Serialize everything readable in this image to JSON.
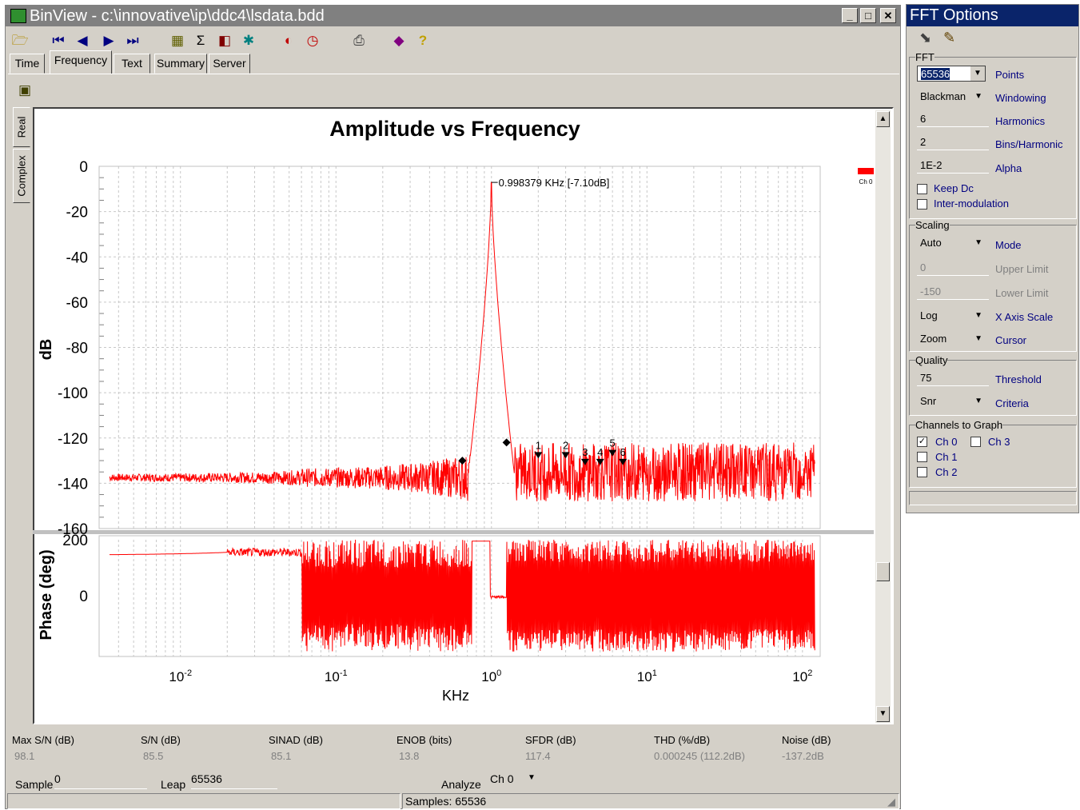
{
  "window": {
    "title": "BinView - c:\\innovative\\ip\\ddc4\\lsdata.bdd",
    "min": "_",
    "max": "□",
    "close": "✕"
  },
  "tabs": [
    {
      "label": "Time"
    },
    {
      "label": "Frequency"
    },
    {
      "label": "Text"
    },
    {
      "label": "Summary"
    },
    {
      "label": "Server"
    }
  ],
  "side_tabs": [
    {
      "label": "Real"
    },
    {
      "label": "Complex"
    }
  ],
  "icons": [
    "open-folder-icon",
    "first-icon",
    "prev-icon",
    "play-icon",
    "last-icon",
    "plot-icon",
    "sigma-icon",
    "analyze-icon",
    "run-icon",
    "stop-icon",
    "clock-icon",
    "print-icon",
    "book-icon",
    "help-icon",
    "tool-icon"
  ],
  "chart_data": {
    "type": "line",
    "title": "Amplitude vs Frequency",
    "xlabel": "KHz",
    "ylabel": "dB",
    "ylabel2": "Phase (deg)",
    "x_scale": "log",
    "xlim": [
      0.003,
      130
    ],
    "ylim": [
      -160,
      0
    ],
    "y2lim": [
      -200,
      200
    ],
    "x_ticks": [
      {
        "base": "10",
        "exp": "-2",
        "value": 0.01
      },
      {
        "base": "10",
        "exp": "-1",
        "value": 0.1
      },
      {
        "base": "10",
        "exp": "0",
        "value": 1
      },
      {
        "base": "10",
        "exp": "1",
        "value": 10
      },
      {
        "base": "10",
        "exp": "2",
        "value": 100
      }
    ],
    "y_ticks": [
      0,
      -20,
      -40,
      -60,
      -80,
      -100,
      -120,
      -140,
      -160
    ],
    "y2_ticks": [
      200,
      0
    ],
    "grid": true,
    "legend": {
      "label": "Ch 0",
      "color": "#ff0000",
      "position": "top-right"
    },
    "peak_annotation": "0.998379 KHz [-7.10dB]",
    "peak": {
      "x": 0.998379,
      "y": -7.1
    },
    "bin_markers": [
      {
        "x": 0.65,
        "y": -130
      },
      {
        "x": 1.25,
        "y": -122
      }
    ],
    "harmonics": [
      {
        "label": "1",
        "x": 2.0,
        "y": -128
      },
      {
        "label": "2",
        "x": 3.0,
        "y": -128
      },
      {
        "label": "3",
        "x": 4.0,
        "y": -131
      },
      {
        "label": "4",
        "x": 5.0,
        "y": -131
      },
      {
        "label": "5",
        "x": 6.0,
        "y": -127
      },
      {
        "label": "6",
        "x": 7.0,
        "y": -131
      }
    ],
    "series": [
      {
        "name": "Ch 0",
        "color": "#ff0000",
        "noise_floor": -137.5
      }
    ]
  },
  "stats": [
    {
      "label": "Max S/N (dB)",
      "value": "98.1"
    },
    {
      "label": "S/N (dB)",
      "value": "85.5"
    },
    {
      "label": "SINAD (dB)",
      "value": "85.1"
    },
    {
      "label": "ENOB (bits)",
      "value": "13.8"
    },
    {
      "label": "SFDR (dB)",
      "value": "117.4"
    },
    {
      "label": "THD (%/dB)",
      "value": "0.000245 (112.2dB)"
    },
    {
      "label": "Noise (dB)",
      "value": "-137.2dB"
    }
  ],
  "bottom": {
    "sample_label": "Sample",
    "sample_value": "0",
    "leap_label": "Leap",
    "leap_value": "65536",
    "analyze_label": "Analyze",
    "analyze_value": "Ch 0",
    "status": "Samples: 65536"
  },
  "fft_panel": {
    "title": "FFT Options",
    "fft_group": "FFT",
    "points_value": "65536",
    "points_label": "Points",
    "window_value": "Blackman",
    "window_label": "Windowing",
    "harmonics_value": "6",
    "harmonics_label": "Harmonics",
    "bins_value": "2",
    "bins_label": "Bins/Harmonic",
    "alpha_value": "1E-2",
    "alpha_label": "Alpha",
    "keep_dc": "Keep Dc",
    "intermod": "Inter-modulation",
    "scaling_group": "Scaling",
    "mode_value": "Auto",
    "mode_label": "Mode",
    "upper_value": "0",
    "upper_label": "Upper Limit",
    "lower_value": "-150",
    "lower_label": "Lower Limit",
    "xaxis_value": "Log",
    "xaxis_label": "X Axis Scale",
    "cursor_value": "Zoom",
    "cursor_label": "Cursor",
    "quality_group": "Quality",
    "threshold_value": "75",
    "threshold_label": "Threshold",
    "criteria_value": "Snr",
    "criteria_label": "Criteria",
    "channels_group": "Channels to Graph",
    "channels": [
      {
        "label": "Ch 0",
        "checked": true
      },
      {
        "label": "Ch 1",
        "checked": false
      },
      {
        "label": "Ch 2",
        "checked": false
      },
      {
        "label": "Ch 3",
        "checked": false
      }
    ]
  }
}
